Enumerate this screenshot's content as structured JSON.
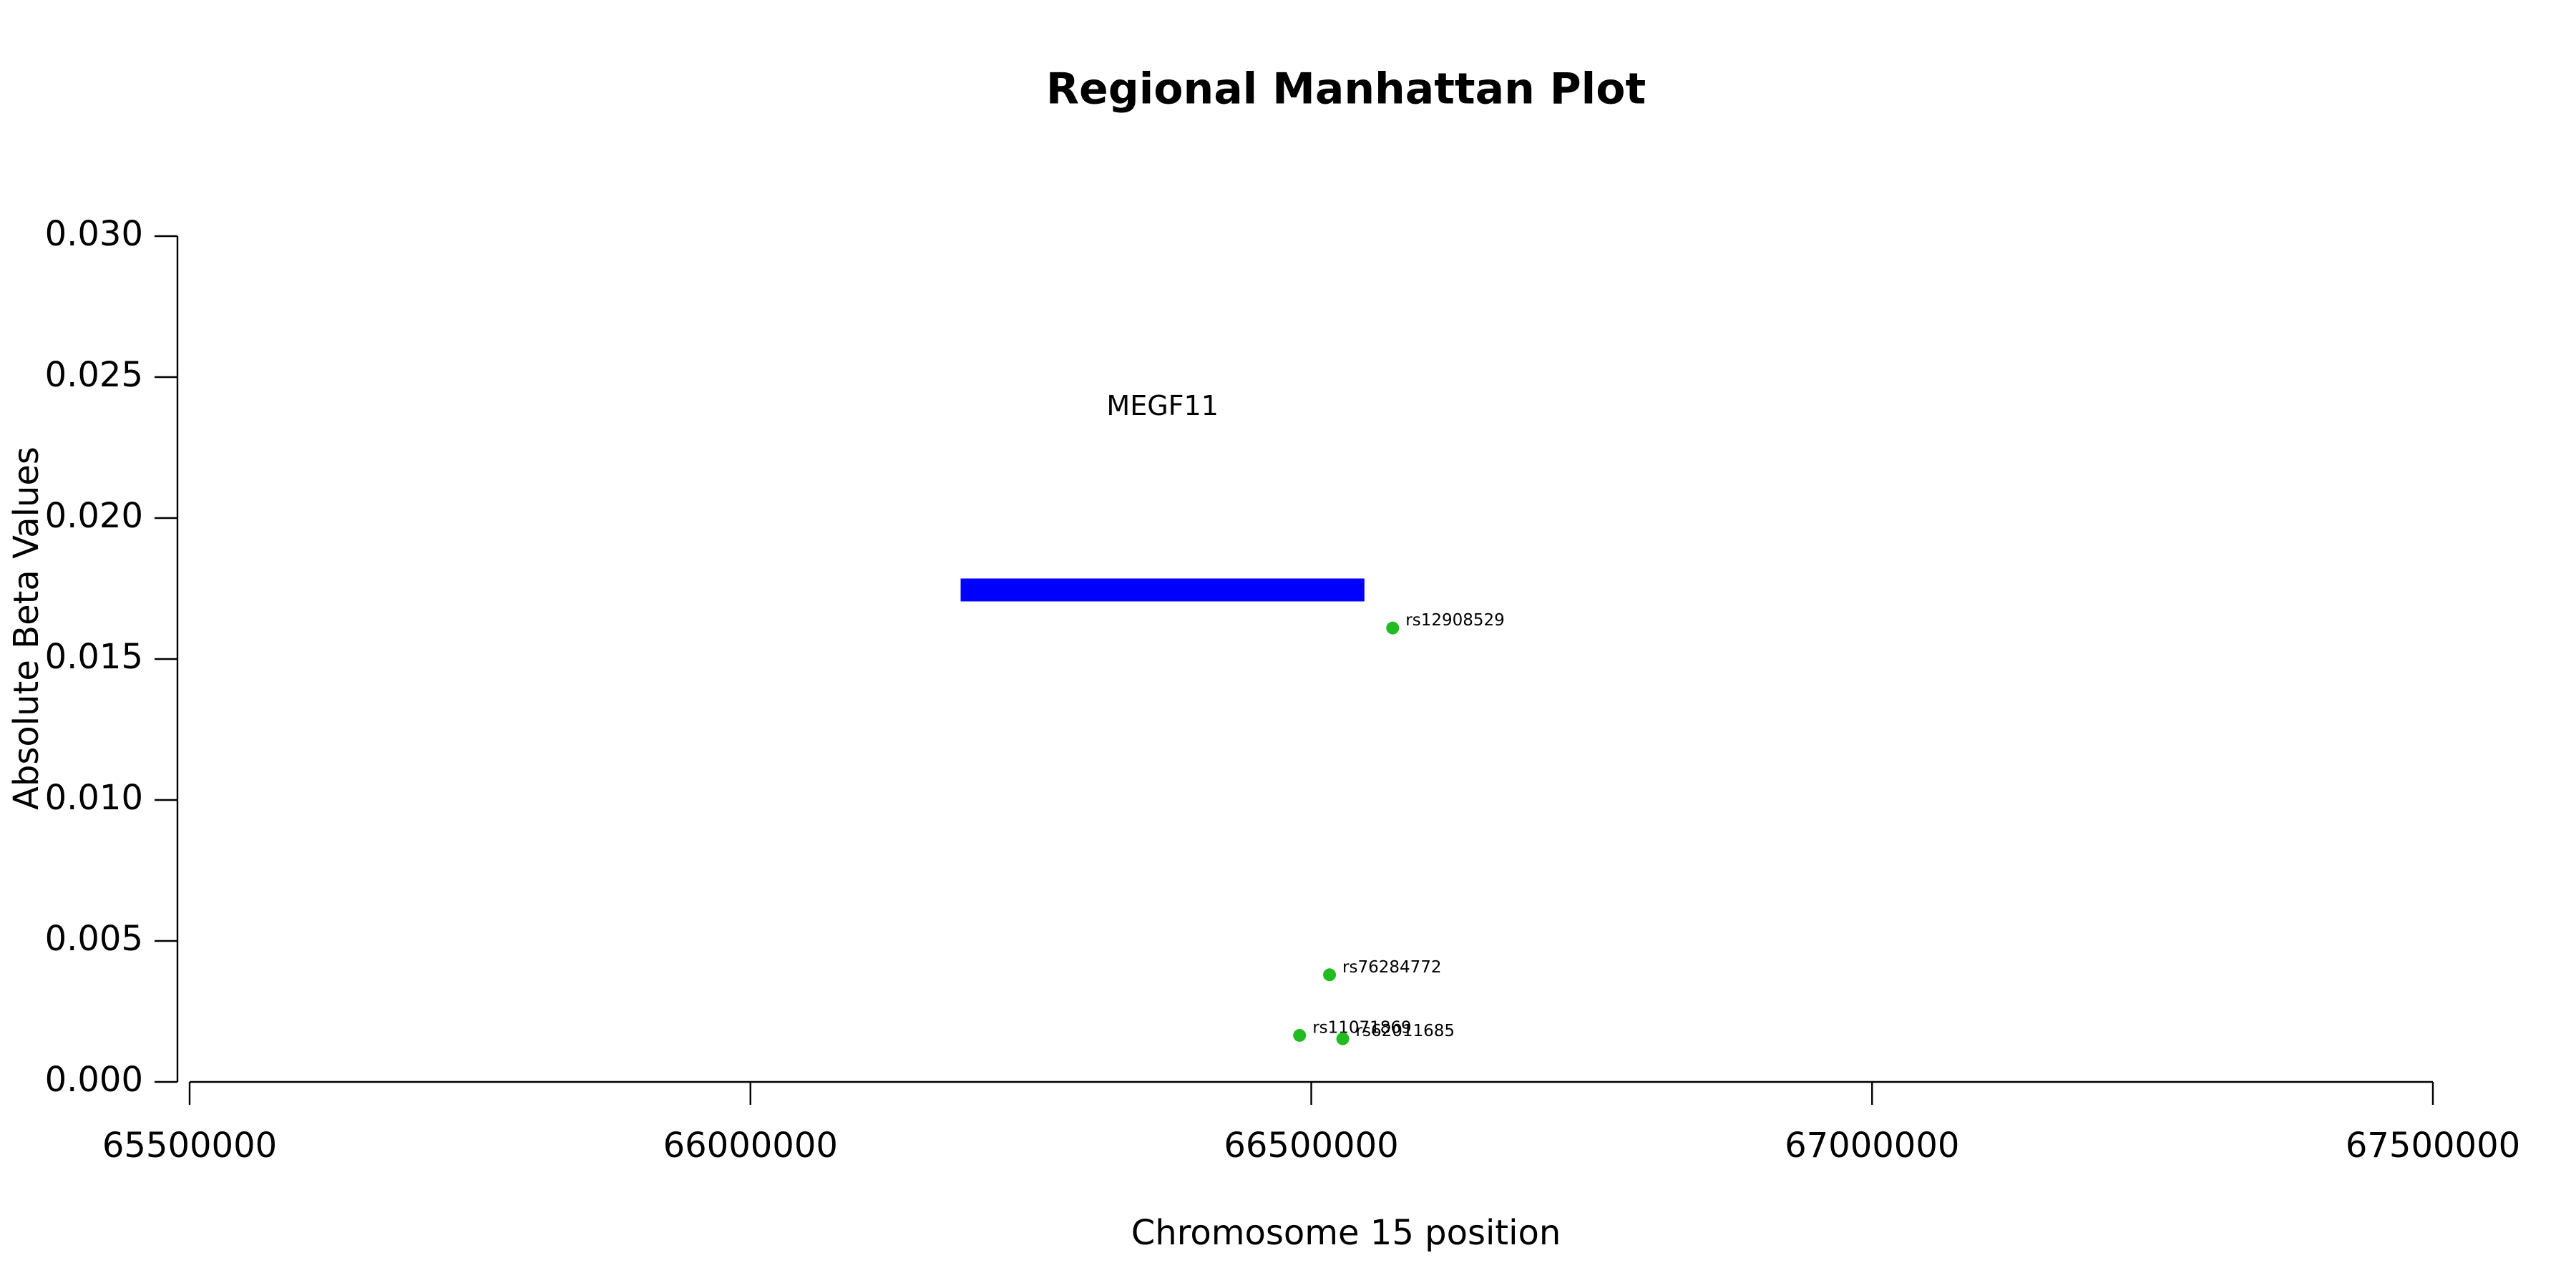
{
  "chart_data": {
    "type": "scatter",
    "title": "Regional Manhattan Plot",
    "x_label": "Chromosome 15 position",
    "y_label": "Absolute Beta Values",
    "xlim": [
      65500000,
      67500000
    ],
    "ylim": [
      0,
      0.03
    ],
    "xticks": [
      65500000,
      66000000,
      66500000,
      67000000,
      67500000
    ],
    "yticks": [
      {
        "value": 0,
        "label": "0.000"
      },
      {
        "value": 0.005,
        "label": "0.005"
      },
      {
        "value": 0.01,
        "label": "0.010"
      },
      {
        "value": 0.015,
        "label": "0.015"
      },
      {
        "value": 0.02,
        "label": "0.020"
      },
      {
        "value": 0.025,
        "label": "0.025"
      },
      {
        "value": 0.03,
        "label": "0.030"
      }
    ],
    "series": [
      {
        "color": "#22bb22",
        "x": [
          66572600,
          66516300,
          66489600,
          66528100
        ],
        "values": [
          0.0161,
          0.0038,
          0.00165,
          0.00153
        ],
        "labels": [
          "rs12908529",
          "rs76284772",
          "rs11071869",
          "rs62011685"
        ]
      }
    ],
    "genes": [
      {
        "name": "MEGF11",
        "start": 66187400,
        "end": 66547400,
        "y": 0.01745,
        "color": "#0000ff"
      }
    ]
  }
}
